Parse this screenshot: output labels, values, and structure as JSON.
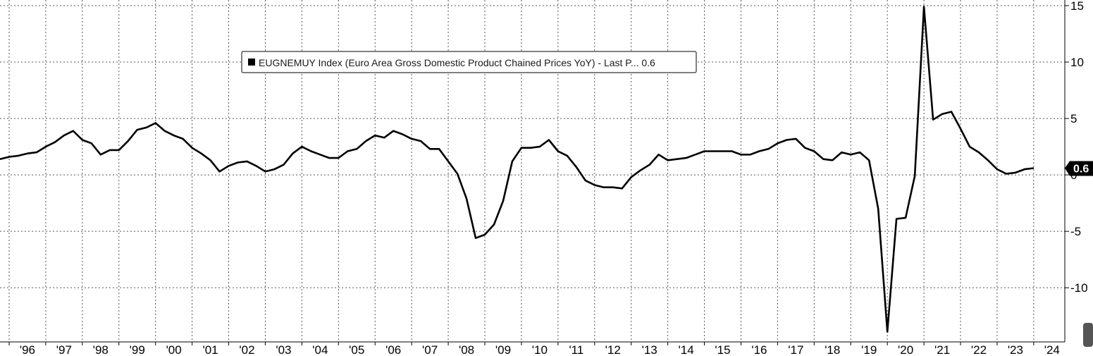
{
  "chart_data": {
    "type": "line",
    "title": "",
    "xlabel": "",
    "ylabel": "",
    "ylim": [
      -14.8,
      15.5
    ],
    "y_ticks": [
      15,
      10,
      5,
      0,
      -5,
      -10
    ],
    "y_tick_labels": [
      "15",
      "10",
      "5",
      "0",
      "-5",
      "-10"
    ],
    "x_tick_labels": [
      "'96",
      "'97",
      "'98",
      "'99",
      "'00",
      "'01",
      "'02",
      "'03",
      "'04",
      "'05",
      "'06",
      "'07",
      "'08",
      "'09",
      "'10",
      "'11",
      "'12",
      "'13",
      "'14",
      "'15",
      "'16",
      "'17",
      "'18",
      "'19",
      "'20",
      "'21",
      "'22",
      "'23",
      "'24"
    ],
    "grid": true,
    "legend": {
      "placement": "top-center",
      "text": "EUGNEMUY Index (Euro Area Gross Domestic Product Chained  Prices YoY) - Last P... 0.6",
      "color": "#000000"
    },
    "last_value_label": "0.6",
    "series": [
      {
        "name": "EUGNEMUY Index (Euro Area Gross Domestic Product Chained  Prices YoY)",
        "color": "#000000",
        "values": [
          1.4,
          1.6,
          1.7,
          1.9,
          2.0,
          2.5,
          2.9,
          3.5,
          3.9,
          3.1,
          2.8,
          1.8,
          2.2,
          2.2,
          3.0,
          4.0,
          4.2,
          4.6,
          3.9,
          3.5,
          3.2,
          2.4,
          1.9,
          1.3,
          0.3,
          0.8,
          1.1,
          1.2,
          0.8,
          0.3,
          0.5,
          0.9,
          1.9,
          2.5,
          2.1,
          1.8,
          1.5,
          1.5,
          2.1,
          2.3,
          3.0,
          3.5,
          3.3,
          3.9,
          3.6,
          3.2,
          3.0,
          2.3,
          2.3,
          1.2,
          0.1,
          -2.1,
          -5.6,
          -5.3,
          -4.4,
          -2.3,
          1.2,
          2.4,
          2.4,
          2.5,
          3.1,
          2.1,
          1.7,
          0.7,
          -0.5,
          -0.9,
          -1.1,
          -1.1,
          -1.2,
          -0.2,
          0.4,
          0.9,
          1.8,
          1.3,
          1.4,
          1.5,
          1.8,
          2.1,
          2.1,
          2.1,
          2.1,
          1.8,
          1.8,
          2.1,
          2.3,
          2.8,
          3.1,
          3.2,
          2.4,
          2.1,
          1.4,
          1.3,
          2.0,
          1.8,
          2.0,
          1.3,
          -3.0,
          -13.9,
          -3.9,
          -3.8,
          -0.1,
          14.9,
          4.9,
          5.4,
          5.6,
          4.1,
          2.5,
          2.0,
          1.3,
          0.5,
          0.1,
          0.2,
          0.5,
          0.6
        ]
      }
    ]
  }
}
